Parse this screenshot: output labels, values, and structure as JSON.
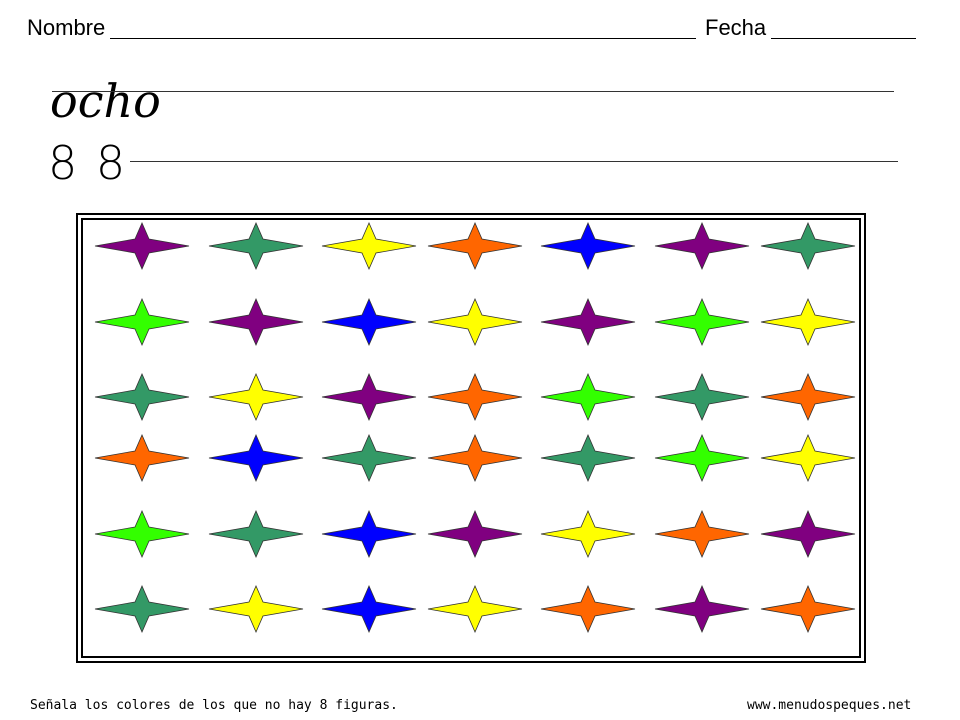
{
  "header": {
    "name_label": "Nombre",
    "date_label": "Fecha"
  },
  "writing": {
    "word": "ocho",
    "digits": "8 8"
  },
  "colors": {
    "purple": "#800080",
    "teal": "#339966",
    "yellow": "#ffff00",
    "orange": "#ff6600",
    "blue": "#0000ff",
    "lime": "#33ff00"
  },
  "stars": [
    [
      "purple",
      "teal",
      "yellow",
      "orange",
      "blue",
      "purple",
      "teal"
    ],
    [
      "lime",
      "purple",
      "blue",
      "yellow",
      "purple",
      "lime",
      "yellow"
    ],
    [
      "teal",
      "yellow",
      "purple",
      "orange",
      "lime",
      "teal",
      "orange"
    ],
    [
      "orange",
      "blue",
      "teal",
      "orange",
      "teal",
      "lime",
      "yellow"
    ],
    [
      "lime",
      "teal",
      "blue",
      "purple",
      "yellow",
      "orange",
      "purple"
    ],
    [
      "teal",
      "yellow",
      "blue",
      "yellow",
      "orange",
      "purple",
      "orange"
    ]
  ],
  "footer": {
    "instruction": "Señala los colores de los que no hay 8 figuras.",
    "website": "www.menudospeques.net"
  }
}
